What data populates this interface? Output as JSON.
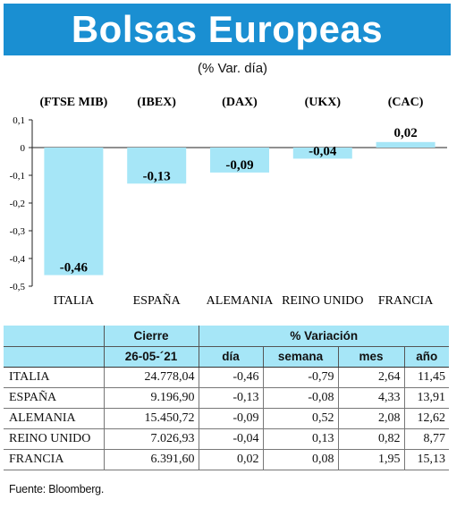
{
  "header": {
    "title": "Bolsas Europeas",
    "subtitle": "(% Var. día)"
  },
  "chart_data": {
    "type": "bar",
    "indices": [
      "(FTSE MIB)",
      "(IBEX)",
      "(DAX)",
      "(UKX)",
      "(CAC)"
    ],
    "categories": [
      "ITALIA",
      "ESPAÑA",
      "ALEMANIA",
      "REINO UNIDO",
      "FRANCIA"
    ],
    "values": [
      -0.46,
      -0.13,
      -0.09,
      -0.04,
      0.02
    ],
    "value_labels": [
      "-0,46",
      "-0,13",
      "-0,09",
      "-0,04",
      "0,02"
    ],
    "yticks": [
      0.1,
      0,
      -0.1,
      -0.2,
      -0.3,
      -0.4,
      -0.5
    ],
    "ytick_labels": [
      "0,1",
      "0",
      "-0,1",
      "-0,2",
      "-0,3",
      "-0,4",
      "-0,5"
    ],
    "ylim": [
      -0.5,
      0.1
    ],
    "bar_color": "#a6e6f7"
  },
  "table": {
    "group_close": "Cierre",
    "group_variation": "% Variación",
    "date_header": "26-05-´21",
    "col_headers": [
      "día",
      "semana",
      "mes",
      "año"
    ],
    "rows": [
      {
        "name": "ITALIA",
        "cierre": "24.778,04",
        "dia": "-0,46",
        "semana": "-0,79",
        "mes": "2,64",
        "ano": "11,45"
      },
      {
        "name": "ESPAÑA",
        "cierre": "9.196,90",
        "dia": "-0,13",
        "semana": "-0,08",
        "mes": "4,33",
        "ano": "13,91"
      },
      {
        "name": "ALEMANIA",
        "cierre": "15.450,72",
        "dia": "-0,09",
        "semana": "0,52",
        "mes": "2,08",
        "ano": "12,62"
      },
      {
        "name": "REINO UNIDO",
        "cierre": "7.026,93",
        "dia": "-0,04",
        "semana": "0,13",
        "mes": "0,82",
        "ano": "8,77"
      },
      {
        "name": "FRANCIA",
        "cierre": "6.391,60",
        "dia": "0,02",
        "semana": "0,08",
        "mes": "1,95",
        "ano": "15,13"
      }
    ]
  },
  "footnote": "Fuente: Bloomberg."
}
